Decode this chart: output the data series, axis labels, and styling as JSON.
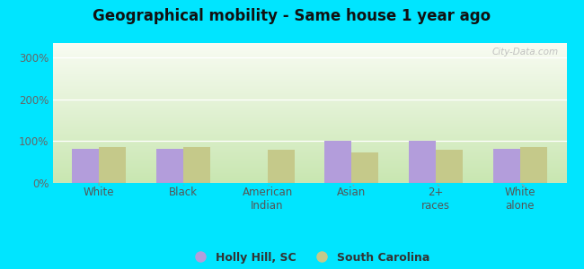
{
  "title": "Geographical mobility - Same house 1 year ago",
  "categories": [
    "White",
    "Black",
    "American\nIndian",
    "Asian",
    "2+\nraces",
    "White\nalone"
  ],
  "holly_hill": [
    82,
    82,
    0,
    100,
    100,
    82
  ],
  "south_carolina": [
    85,
    85,
    80,
    73,
    80,
    85
  ],
  "holly_hill_color": "#b39ddb",
  "south_carolina_color": "#c5c98a",
  "bg_outer": "#00e5ff",
  "grad_top": "#f8fbf2",
  "grad_bottom": "#c8e6b0",
  "ylabel_ticks": [
    "0%",
    "100%",
    "200%",
    "300%"
  ],
  "ytick_vals": [
    0,
    100,
    200,
    300
  ],
  "ylim_max": 335,
  "bar_width": 0.32,
  "legend_label1": "Holly Hill, SC",
  "legend_label2": "South Carolina",
  "watermark": "City-Data.com"
}
